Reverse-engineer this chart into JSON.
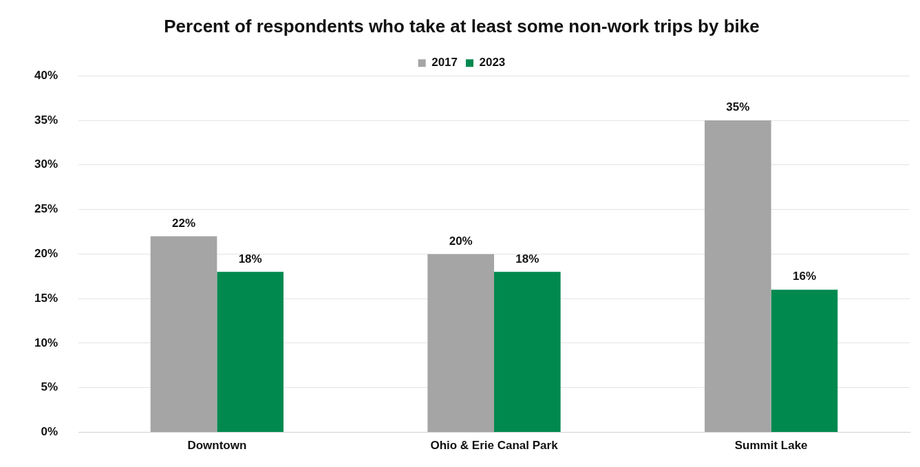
{
  "chart_data": {
    "type": "bar",
    "title": "Percent of respondents who take at least some non-work trips by bike",
    "categories": [
      "Downtown",
      "Ohio & Erie Canal Park",
      "Summit Lake"
    ],
    "series": [
      {
        "name": "2017",
        "color": "#a5a5a5",
        "values": [
          22,
          20,
          35
        ],
        "value_labels": [
          "22%",
          "20%",
          "35%"
        ]
      },
      {
        "name": "2023",
        "color": "#00894f",
        "values": [
          18,
          18,
          16
        ],
        "value_labels": [
          "18%",
          "18%",
          "16%"
        ]
      }
    ],
    "ylim": [
      0,
      40
    ],
    "yticks": [
      {
        "value": 0,
        "label": "0%"
      },
      {
        "value": 5,
        "label": "5%"
      },
      {
        "value": 10,
        "label": "10%"
      },
      {
        "value": 15,
        "label": "15%"
      },
      {
        "value": 20,
        "label": "20%"
      },
      {
        "value": 25,
        "label": "25%"
      },
      {
        "value": 30,
        "label": "30%"
      },
      {
        "value": 35,
        "label": "35%"
      },
      {
        "value": 40,
        "label": "40%"
      }
    ],
    "grid": "y",
    "legend": "top"
  }
}
